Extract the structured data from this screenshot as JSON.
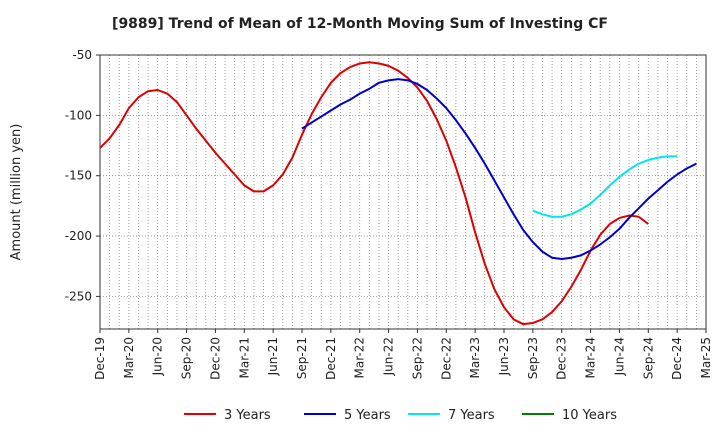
{
  "chart_data": {
    "type": "line",
    "title": "[9889]  Trend of Mean of 12-Month Moving Sum of Investing CF",
    "xlabel": "",
    "ylabel": "Amount (million yen)",
    "ylim": [
      -277,
      -50
    ],
    "yticks": [
      -50,
      -100,
      -150,
      -200,
      -250
    ],
    "x_start": "Dec-19",
    "x_end": "Mar-25",
    "tick_labels": [
      "Dec-19",
      "Mar-20",
      "Jun-20",
      "Sep-20",
      "Dec-20",
      "Mar-21",
      "Jun-21",
      "Sep-21",
      "Dec-21",
      "Mar-22",
      "Jun-22",
      "Sep-22",
      "Dec-22",
      "Mar-23",
      "Jun-23",
      "Sep-23",
      "Dec-23",
      "Mar-24",
      "Jun-24",
      "Sep-24",
      "Dec-24",
      "Mar-25"
    ],
    "series": [
      {
        "name": "3 Years",
        "color": "#dd0000",
        "start_month_index": 0,
        "values": [
          -127,
          -119,
          -108,
          -94,
          -85,
          -80,
          -79,
          -82,
          -89,
          -100,
          -111,
          -121,
          -131,
          -140,
          -149,
          -158,
          -163,
          -163,
          -158,
          -149,
          -135,
          -116,
          -99,
          -85,
          -73,
          -65,
          -60,
          -57,
          -56,
          -57,
          -59,
          -63,
          -69,
          -77,
          -88,
          -103,
          -121,
          -143,
          -168,
          -197,
          -223,
          -244,
          -259,
          -269,
          -273,
          -272,
          -269,
          -263,
          -254,
          -242,
          -228,
          -212,
          -199,
          -190,
          -185,
          -183,
          -184,
          -190
        ]
      },
      {
        "name": "5 Years",
        "color": "#0000cc",
        "start_month_index": 21,
        "values": [
          -111,
          -106,
          -101,
          -96,
          -91,
          -87,
          -82,
          -78,
          -73,
          -71,
          -70,
          -71,
          -74,
          -79,
          -86,
          -94,
          -104,
          -115,
          -127,
          -140,
          -154,
          -168,
          -182,
          -195,
          -205,
          -213,
          -218,
          -219,
          -218,
          -216,
          -212,
          -207,
          -201,
          -194,
          -185,
          -177,
          -169,
          -162,
          -155,
          -149,
          -144,
          -140
        ]
      },
      {
        "name": "7 Years",
        "color": "#00e5ee",
        "start_month_index": 45,
        "values": [
          -179,
          -182,
          -184,
          -184,
          -182,
          -178,
          -173,
          -166,
          -158,
          -151,
          -145,
          -140,
          -137,
          -135,
          -134,
          -134
        ]
      },
      {
        "name": "10 Years",
        "color": "#008000",
        "start_month_index": 0,
        "values": []
      }
    ],
    "legend_position": "bottom"
  }
}
